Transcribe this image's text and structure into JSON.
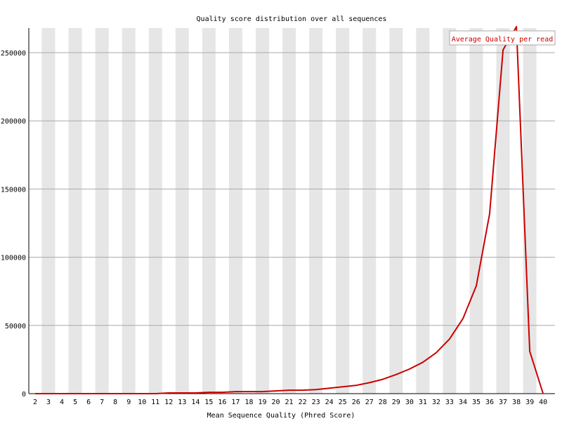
{
  "chart_data": {
    "type": "line",
    "title": "Quality score distribution over all sequences",
    "xlabel": "Mean Sequence Quality (Phred Score)",
    "ylabel": "",
    "x": [
      2,
      3,
      4,
      5,
      6,
      7,
      8,
      9,
      10,
      11,
      12,
      13,
      14,
      15,
      16,
      17,
      18,
      19,
      20,
      21,
      22,
      23,
      24,
      25,
      26,
      27,
      28,
      29,
      30,
      31,
      32,
      33,
      34,
      35,
      36,
      37,
      38,
      39,
      40
    ],
    "x_ticks": [
      "2",
      "3",
      "4",
      "5",
      "6",
      "7",
      "8",
      "9",
      "10",
      "11",
      "12",
      "13",
      "14",
      "15",
      "16",
      "17",
      "18",
      "19",
      "20",
      "21",
      "22",
      "23",
      "24",
      "25",
      "26",
      "27",
      "28",
      "29",
      "30",
      "31",
      "32",
      "33",
      "34",
      "35",
      "36",
      "37",
      "38",
      "39",
      "40"
    ],
    "y_ticks": [
      "0",
      "50000",
      "100000",
      "150000",
      "200000",
      "250000"
    ],
    "y_tick_values": [
      0,
      50000,
      100000,
      150000,
      200000,
      250000
    ],
    "ylim": [
      0,
      268000
    ],
    "series": [
      {
        "name": "Average Quality per read",
        "color": "#cc0000",
        "values": [
          0,
          0,
          0,
          0,
          0,
          0,
          0,
          0,
          0,
          0,
          500,
          500,
          500,
          1000,
          1000,
          1500,
          1500,
          1500,
          2000,
          2500,
          2500,
          3000,
          4000,
          5000,
          6000,
          8000,
          10500,
          14000,
          18000,
          23000,
          30000,
          40000,
          55000,
          79000,
          132000,
          252000,
          269000,
          31000,
          0
        ]
      }
    ],
    "grid": true,
    "legend_position": "top-right",
    "colors": {
      "band": "#e6e6e6",
      "gridline": "#aaaaaa",
      "line": "#cc0000",
      "axis": "#000000"
    }
  }
}
